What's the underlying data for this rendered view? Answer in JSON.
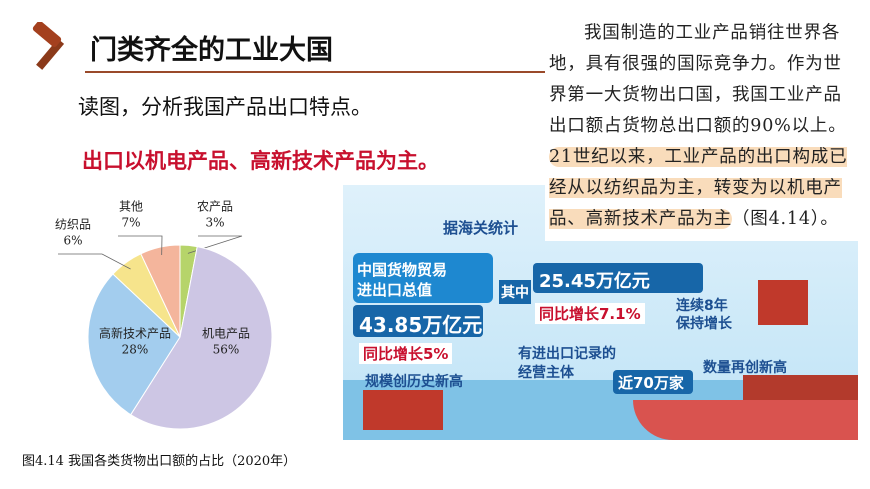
{
  "header": {
    "title": "门类齐全的工业大国",
    "prompt": "读图，分析我国产品出口特点。",
    "answer": "出口以机电产品、高新技术产品为主。"
  },
  "paragraph": {
    "plain": "我国制造的工业产品销往世界各地，具有很强的国际竞争力。作为世界第一大货物出口国，我国工业产品出口额占货物总出口额的90%以上。",
    "highlight": "21世纪以来，工业产品的出口构成已经从以纺织品为主，转变为以机电产品、高新技术产品为主",
    "tail": "（图4.14）。"
  },
  "infographic": {
    "texts": [
      "据海关统计",
      "中国货物贸易",
      "进出口总值",
      "43.85万亿元",
      "同比增长5%",
      "规模创历史新高",
      "其中",
      "25.45万亿元",
      "同比增长7.1%",
      "连续8年",
      "保持增长",
      "有进出口记录的",
      "经营主体",
      "近70万家",
      "数量再创新高"
    ]
  },
  "chart_data": {
    "type": "pie",
    "caption": "图4.14 我国各类货物出口额的占比（2020年）",
    "categories": [
      "农产品",
      "机电产品",
      "高新技术产品",
      "纺织品",
      "其他"
    ],
    "values": [
      3,
      56,
      28,
      6,
      7
    ],
    "value_labels": [
      "3%",
      "56%",
      "28%",
      "6%",
      "7%"
    ],
    "colors": [
      "#b6d46a",
      "#cdc6e4",
      "#a3cdee",
      "#f6e48c",
      "#f4b59c"
    ]
  }
}
